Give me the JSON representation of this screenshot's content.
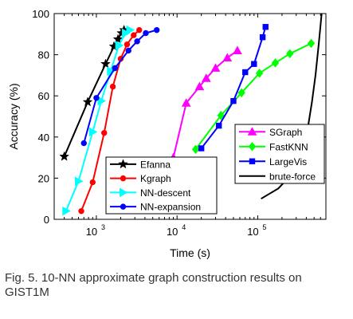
{
  "caption": "Fig. 5.  10-NN approximate graph construction results on GIST1M",
  "chart_data": {
    "type": "line",
    "xlabel": "Time (s)",
    "ylabel": "Accuracy (%)",
    "xscale": "log",
    "xlim": [
      300,
      700000
    ],
    "ylim": [
      0,
      100
    ],
    "xticks": [
      {
        "value": 1000,
        "base": "10",
        "exp": "3"
      },
      {
        "value": 10000,
        "base": "10",
        "exp": "4"
      },
      {
        "value": 100000,
        "base": "10",
        "exp": "5"
      }
    ],
    "yticks": [
      0,
      20,
      40,
      60,
      80,
      100
    ],
    "grid": false,
    "legends": [
      {
        "placement": "bottom-left",
        "entries": [
          "Efanna",
          "Kgraph",
          "NN-descent",
          "NN-expansion"
        ]
      },
      {
        "placement": "bottom-right",
        "entries": [
          "SGraph",
          "FastKNN",
          "LargeVis",
          "brute-force"
        ]
      }
    ],
    "series": [
      {
        "name": "Efanna",
        "color": "#000000",
        "marker": "star",
        "x": [
          400,
          780,
          1300,
          1650,
          1850,
          2050,
          2200
        ],
        "y": [
          30.5,
          57,
          75.5,
          84,
          87.5,
          90.5,
          92
        ]
      },
      {
        "name": "Kgraph",
        "color": "#ff0000",
        "marker": "circle",
        "x": [
          650,
          900,
          1250,
          1600,
          2000,
          2400,
          2900,
          3400
        ],
        "y": [
          4,
          18,
          42,
          64.5,
          78,
          85,
          89.5,
          92
        ]
      },
      {
        "name": "NN-descent",
        "color": "#00ffff",
        "marker": "triangle-right",
        "x": [
          420,
          600,
          900,
          1150,
          1500,
          1900,
          2300,
          2600
        ],
        "y": [
          4,
          18.5,
          42.5,
          57.5,
          72,
          84.5,
          90.5,
          92
        ]
      },
      {
        "name": "NN-expansion",
        "color": "#0000ff",
        "marker": "circle",
        "x": [
          700,
          1000,
          1700,
          2500,
          3200,
          4100,
          5600
        ],
        "y": [
          37,
          59,
          73.5,
          82,
          86.5,
          90.5,
          92
        ]
      },
      {
        "name": "SGraph",
        "color": "#ff00ff",
        "marker": "triangle",
        "x": [
          9000,
          13000,
          19000,
          23000,
          30000,
          42000,
          56000
        ],
        "y": [
          30,
          56.5,
          64.5,
          68.5,
          73.5,
          78.5,
          82
        ]
      },
      {
        "name": "FastKNN",
        "color": "#00ff00",
        "marker": "diamond",
        "x": [
          17000,
          35000,
          63000,
          105000,
          165000,
          250000,
          460000
        ],
        "y": [
          34,
          50.5,
          61.5,
          71,
          76,
          80.5,
          85.5
        ]
      },
      {
        "name": "LargeVis",
        "color": "#0000ff",
        "marker": "square",
        "x": [
          20000,
          33000,
          50000,
          70000,
          90000,
          115000,
          125000
        ],
        "y": [
          34.5,
          45.5,
          57.5,
          71.5,
          75.5,
          88.5,
          93.5
        ]
      },
      {
        "name": "brute-force",
        "color": "#000000",
        "marker": "none",
        "x": [
          110000,
          180000,
          280000,
          360000,
          420000,
          470000,
          520000,
          570000,
          620000
        ],
        "y": [
          10,
          15,
          23,
          32,
          45,
          57,
          70,
          85,
          100
        ]
      }
    ]
  }
}
